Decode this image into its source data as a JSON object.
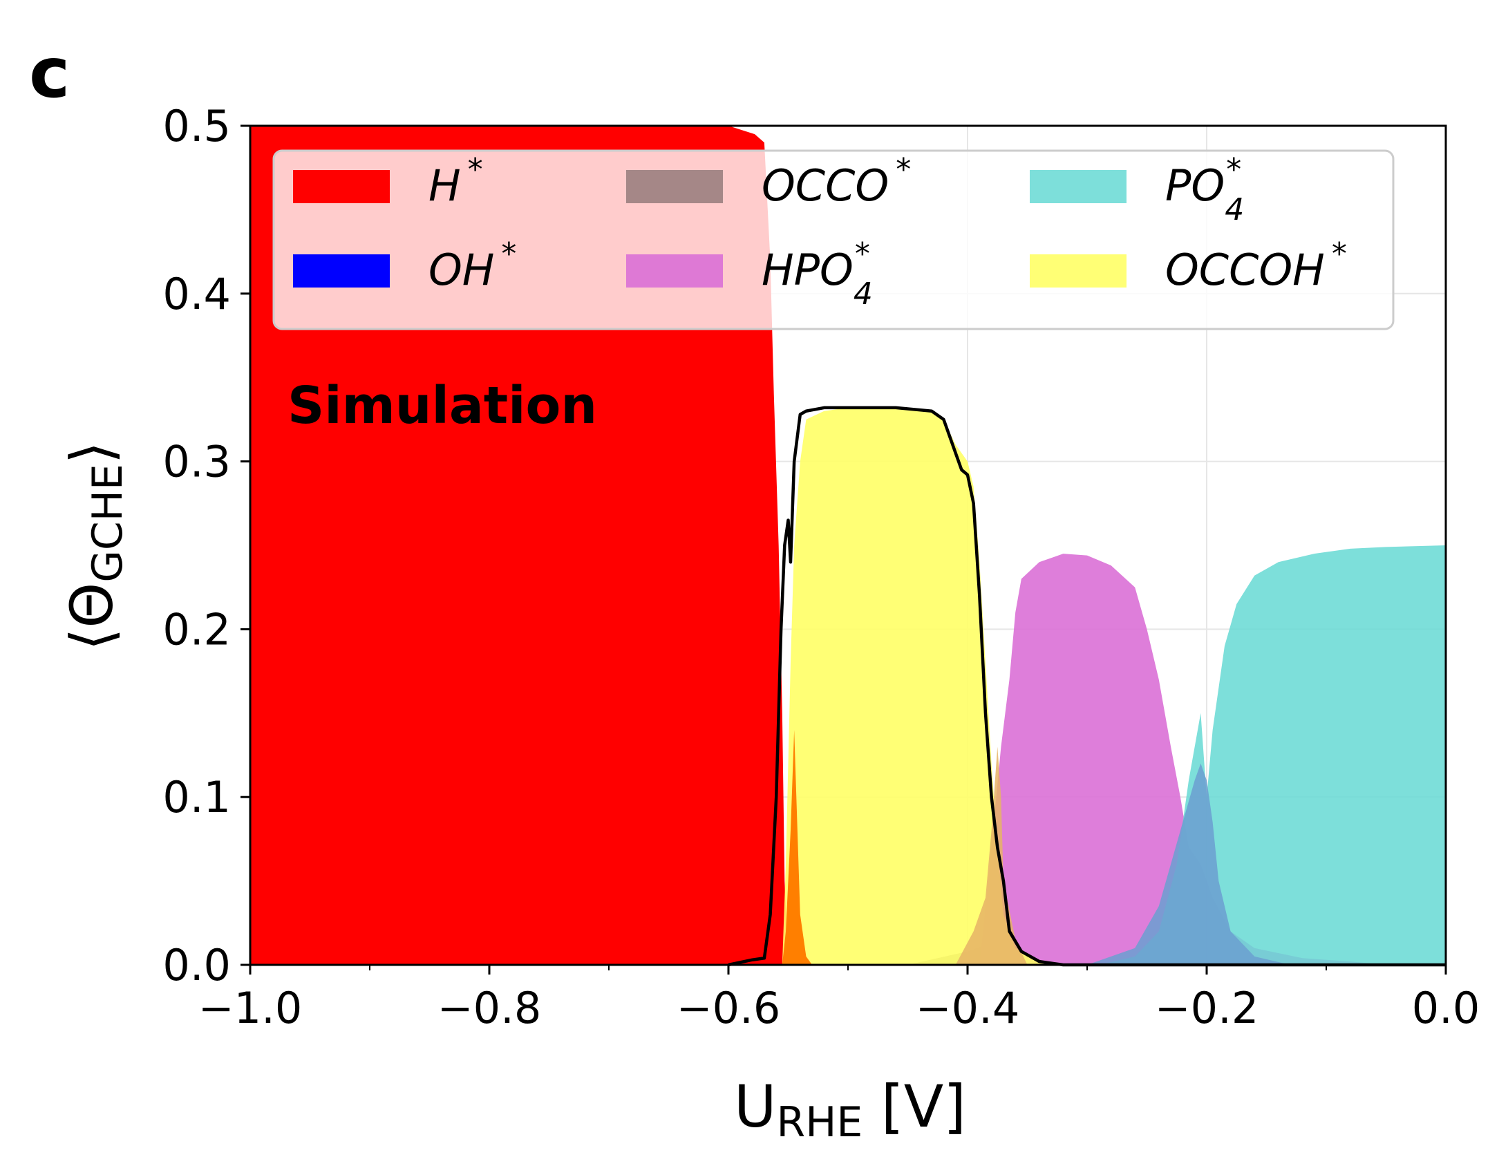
{
  "panel_label": "c",
  "annotation": "Simulation",
  "chart_data": {
    "type": "area",
    "xlabel": {
      "main": "U",
      "sub": "RHE",
      "rest": " [V]"
    },
    "ylabel": {
      "pre": "⟨Θ",
      "sub": "GCHE",
      "post": "⟩"
    },
    "xlim": [
      -1.0,
      0.0
    ],
    "ylim": [
      0.0,
      0.5
    ],
    "xticks": [
      -1.0,
      -0.8,
      -0.6,
      -0.4,
      -0.2,
      0.0
    ],
    "xtick_labels": [
      "−1.0",
      "−0.8",
      "−0.6",
      "−0.4",
      "−0.2",
      "0.0"
    ],
    "yticks": [
      0.0,
      0.1,
      0.2,
      0.3,
      0.4,
      0.5
    ],
    "ytick_labels": [
      "0.0",
      "0.1",
      "0.2",
      "0.3",
      "0.4",
      "0.5"
    ],
    "grid": true,
    "legend": {
      "placement": "top",
      "columns": 3
    },
    "series": [
      {
        "name": "H",
        "sup": "*",
        "sub": "",
        "color": "#ff0000",
        "opacity": 1.0,
        "points": [
          [
            -1.0,
            0.5
          ],
          [
            -0.6,
            0.5
          ],
          [
            -0.578,
            0.495
          ],
          [
            -0.57,
            0.49
          ],
          [
            -0.565,
            0.42
          ],
          [
            -0.562,
            0.34
          ],
          [
            -0.558,
            0.25
          ],
          [
            -0.555,
            0.15
          ],
          [
            -0.553,
            0.05
          ],
          [
            -0.55,
            0.0
          ]
        ]
      },
      {
        "name": "OH",
        "sup": "*",
        "sub": "",
        "color": "#0000ff",
        "opacity": 1.0,
        "points": [
          [
            -1.0,
            0.0
          ],
          [
            0.0,
            0.0
          ]
        ]
      },
      {
        "name": "OCCO",
        "sup": "*",
        "sub": "",
        "color": "#7f6a6a",
        "opacity": 0.7,
        "points": [
          [
            -0.45,
            0.0
          ],
          [
            -0.4,
            0.008
          ],
          [
            -0.385,
            0.012
          ],
          [
            -0.37,
            0.012
          ],
          [
            -0.355,
            0.006
          ],
          [
            -0.34,
            0.002
          ],
          [
            -0.33,
            0.0
          ]
        ]
      },
      {
        "name": "HPO",
        "sup": "*",
        "sub": "4",
        "color": "#da70d6",
        "opacity": 0.9,
        "points": [
          [
            -0.39,
            0.0
          ],
          [
            -0.38,
            0.07
          ],
          [
            -0.372,
            0.13
          ],
          [
            -0.365,
            0.17
          ],
          [
            -0.36,
            0.21
          ],
          [
            -0.355,
            0.23
          ],
          [
            -0.34,
            0.24
          ],
          [
            -0.32,
            0.245
          ],
          [
            -0.3,
            0.244
          ],
          [
            -0.28,
            0.238
          ],
          [
            -0.26,
            0.225
          ],
          [
            -0.25,
            0.2
          ],
          [
            -0.24,
            0.17
          ],
          [
            -0.23,
            0.13
          ],
          [
            -0.222,
            0.1
          ],
          [
            -0.215,
            0.07
          ],
          [
            -0.205,
            0.06
          ],
          [
            -0.195,
            0.04
          ],
          [
            -0.18,
            0.02
          ],
          [
            -0.16,
            0.01
          ],
          [
            -0.12,
            0.004
          ],
          [
            -0.08,
            0.002
          ],
          [
            -0.05,
            0.0
          ]
        ]
      },
      {
        "name": "PO",
        "sup": "*",
        "sub": "4",
        "color": "#66d9d4",
        "opacity": 0.85,
        "points": [
          [
            -0.29,
            0.0
          ],
          [
            -0.26,
            0.005
          ],
          [
            -0.24,
            0.02
          ],
          [
            -0.225,
            0.06
          ],
          [
            -0.215,
            0.11
          ],
          [
            -0.205,
            0.15
          ],
          [
            -0.2,
            0.1
          ],
          [
            -0.195,
            0.14
          ],
          [
            -0.185,
            0.19
          ],
          [
            -0.175,
            0.215
          ],
          [
            -0.16,
            0.232
          ],
          [
            -0.14,
            0.24
          ],
          [
            -0.11,
            0.245
          ],
          [
            -0.08,
            0.248
          ],
          [
            -0.05,
            0.249
          ],
          [
            0.0,
            0.25
          ]
        ]
      },
      {
        "name": "OCCOH",
        "sup": "*",
        "sub": "",
        "color": "#ffff66",
        "opacity": 0.9,
        "points": [
          [
            -0.555,
            0.0
          ],
          [
            -0.552,
            0.06
          ],
          [
            -0.548,
            0.18
          ],
          [
            -0.545,
            0.25
          ],
          [
            -0.54,
            0.3
          ],
          [
            -0.535,
            0.325
          ],
          [
            -0.52,
            0.33
          ],
          [
            -0.5,
            0.332
          ],
          [
            -0.46,
            0.332
          ],
          [
            -0.43,
            0.33
          ],
          [
            -0.42,
            0.325
          ],
          [
            -0.41,
            0.31
          ],
          [
            -0.4,
            0.3
          ],
          [
            -0.395,
            0.285
          ],
          [
            -0.39,
            0.24
          ],
          [
            -0.385,
            0.18
          ],
          [
            -0.38,
            0.12
          ],
          [
            -0.375,
            0.07
          ],
          [
            -0.37,
            0.03
          ],
          [
            -0.36,
            0.01
          ],
          [
            -0.345,
            0.003
          ],
          [
            -0.33,
            0.0
          ]
        ]
      }
    ],
    "extra_peaks": [
      {
        "color": "#ff7f00",
        "opacity": 1.0,
        "points": [
          [
            -0.555,
            0.0
          ],
          [
            -0.552,
            0.02
          ],
          [
            -0.548,
            0.08
          ],
          [
            -0.545,
            0.14
          ],
          [
            -0.54,
            0.03
          ],
          [
            -0.535,
            0.005
          ],
          [
            -0.53,
            0.0
          ]
        ]
      },
      {
        "color": "#e6b366",
        "opacity": 0.85,
        "points": [
          [
            -0.41,
            0.0
          ],
          [
            -0.395,
            0.02
          ],
          [
            -0.385,
            0.04
          ],
          [
            -0.38,
            0.08
          ],
          [
            -0.375,
            0.13
          ],
          [
            -0.372,
            0.1
          ],
          [
            -0.37,
            0.05
          ],
          [
            -0.36,
            0.015
          ],
          [
            -0.35,
            0.0
          ]
        ]
      },
      {
        "color": "#6b9fd0",
        "opacity": 0.85,
        "points": [
          [
            -0.3,
            0.0
          ],
          [
            -0.26,
            0.01
          ],
          [
            -0.24,
            0.035
          ],
          [
            -0.23,
            0.06
          ],
          [
            -0.22,
            0.085
          ],
          [
            -0.21,
            0.11
          ],
          [
            -0.205,
            0.12
          ],
          [
            -0.2,
            0.11
          ],
          [
            -0.195,
            0.085
          ],
          [
            -0.19,
            0.05
          ],
          [
            -0.18,
            0.02
          ],
          [
            -0.16,
            0.005
          ],
          [
            -0.13,
            0.0
          ]
        ]
      }
    ],
    "total_line": {
      "color": "#000000",
      "points": [
        [
          -0.6,
          0.0
        ],
        [
          -0.58,
          0.003
        ],
        [
          -0.57,
          0.004
        ],
        [
          -0.565,
          0.03
        ],
        [
          -0.56,
          0.1
        ],
        [
          -0.556,
          0.2
        ],
        [
          -0.553,
          0.25
        ],
        [
          -0.55,
          0.265
        ],
        [
          -0.548,
          0.24
        ],
        [
          -0.545,
          0.3
        ],
        [
          -0.54,
          0.328
        ],
        [
          -0.535,
          0.33
        ],
        [
          -0.52,
          0.332
        ],
        [
          -0.5,
          0.332
        ],
        [
          -0.46,
          0.332
        ],
        [
          -0.43,
          0.33
        ],
        [
          -0.42,
          0.325
        ],
        [
          -0.41,
          0.305
        ],
        [
          -0.405,
          0.295
        ],
        [
          -0.4,
          0.292
        ],
        [
          -0.395,
          0.275
        ],
        [
          -0.39,
          0.22
        ],
        [
          -0.385,
          0.15
        ],
        [
          -0.38,
          0.1
        ],
        [
          -0.375,
          0.07
        ],
        [
          -0.37,
          0.05
        ],
        [
          -0.365,
          0.02
        ],
        [
          -0.355,
          0.008
        ],
        [
          -0.34,
          0.002
        ],
        [
          -0.32,
          0.0
        ],
        [
          0.0,
          0.0
        ]
      ]
    }
  }
}
